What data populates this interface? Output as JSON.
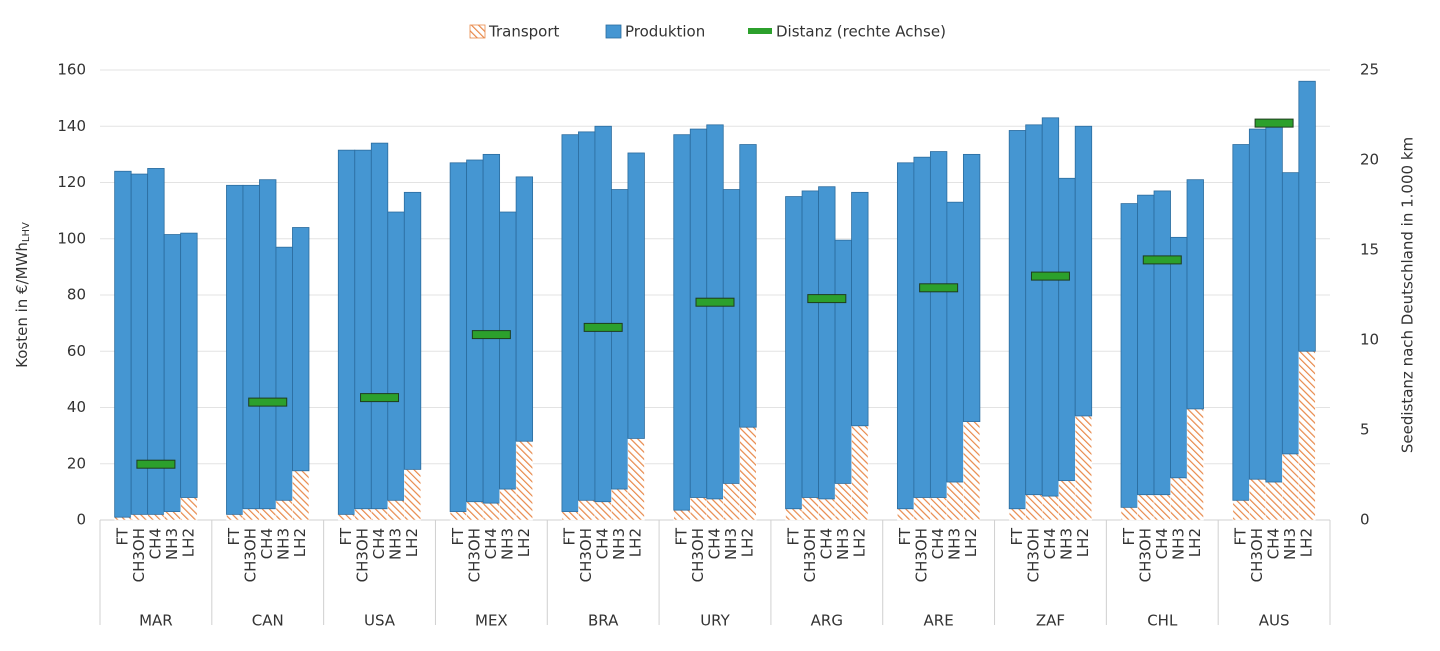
{
  "chart_data": {
    "type": "grouped_stacked_bar_line",
    "groups": [
      "MAR",
      "CAN",
      "USA",
      "MEX",
      "BRA",
      "URY",
      "ARG",
      "ARE",
      "ZAF",
      "CHL",
      "AUS"
    ],
    "subcategories": [
      "FT",
      "CH3OH",
      "CH4",
      "NH3",
      "LH2"
    ],
    "y_label": "Kosten in €/MWh",
    "y_label_sub": "LHV",
    "y2_label": "Seedistanz nach Deutschland in 1.000 km",
    "ylim": [
      0,
      160
    ],
    "yticks": [
      0,
      20,
      40,
      60,
      80,
      100,
      120,
      140,
      160
    ],
    "y2lim": [
      0,
      25
    ],
    "y2ticks": [
      0,
      5,
      10,
      15,
      20,
      25
    ],
    "grid": true,
    "legend": "top",
    "series": [
      {
        "name": "Transport",
        "color": "#e8894a",
        "pattern": "hatch",
        "values": [
          1,
          2,
          2,
          3,
          8,
          2,
          4,
          4,
          7,
          17.5,
          2,
          4,
          4,
          7,
          18,
          3,
          6.5,
          6,
          11,
          28,
          3,
          7,
          6.5,
          11,
          29,
          3.5,
          8,
          7.5,
          13,
          33,
          4,
          8,
          7.5,
          13,
          33.5,
          4,
          8,
          8,
          13.5,
          35,
          4,
          9,
          8.5,
          14,
          37,
          4.5,
          9,
          9,
          15,
          39.5,
          7,
          14.5,
          13.5,
          23.5,
          60
        ]
      },
      {
        "name": "Produktion",
        "color": "#4596d2",
        "values": [
          123,
          121,
          123,
          98.5,
          94,
          117,
          115,
          117,
          90,
          86.5,
          129.5,
          127.5,
          130,
          102.5,
          98.5,
          124,
          121.5,
          124,
          98.5,
          94,
          134,
          131,
          133.5,
          106.5,
          101.5,
          133.5,
          131,
          133,
          104.5,
          100.5,
          111,
          109,
          111,
          86.5,
          83,
          123,
          121,
          123,
          99.5,
          95,
          134.5,
          131.5,
          134.5,
          107.5,
          103,
          108,
          106.5,
          108,
          85.5,
          81.5,
          126.5,
          124.5,
          126.5,
          100,
          96
        ]
      },
      {
        "name": "Distanz (rechte Achse)",
        "color": "#2ca02c",
        "axis": "y2",
        "per": "group",
        "values": [
          3.1,
          6.55,
          6.8,
          10.3,
          10.7,
          12.1,
          12.3,
          12.9,
          13.55,
          14.45,
          22.05
        ]
      }
    ]
  }
}
